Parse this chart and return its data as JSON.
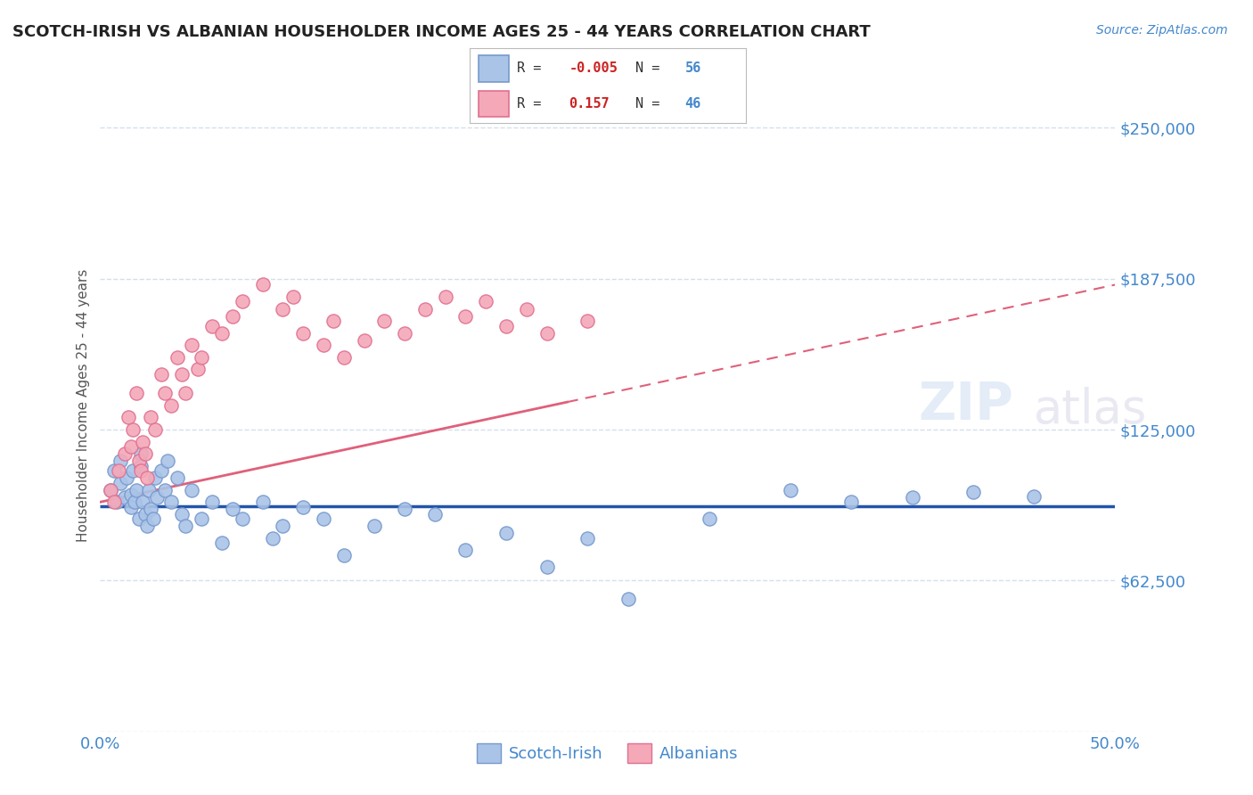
{
  "title": "SCOTCH-IRISH VS ALBANIAN HOUSEHOLDER INCOME AGES 25 - 44 YEARS CORRELATION CHART",
  "source": "Source: ZipAtlas.com",
  "ylabel": "Householder Income Ages 25 - 44 years",
  "yticks": [
    0,
    62500,
    125000,
    187500,
    250000
  ],
  "ytick_labels": [
    "",
    "$62,500",
    "$125,000",
    "$187,500",
    "$250,000"
  ],
  "xlim": [
    0.0,
    0.5
  ],
  "ylim": [
    0,
    270000
  ],
  "legend_labels": [
    "Scotch-Irish",
    "Albanians"
  ],
  "scotch_irish_r": "-0.005",
  "scotch_irish_n": "56",
  "albanian_r": "0.157",
  "albanian_n": "46",
  "scotch_irish_color": "#aac4e8",
  "albanian_color": "#f4a8b8",
  "scotch_irish_edge": "#7799cc",
  "albanian_edge": "#e07090",
  "trend_scotch_color": "#2255aa",
  "trend_albanian_color": "#e0607a",
  "background_color": "#ffffff",
  "grid_color": "#c8d8e8",
  "scotch_irish_x": [
    0.005,
    0.007,
    0.008,
    0.01,
    0.01,
    0.012,
    0.013,
    0.015,
    0.015,
    0.016,
    0.017,
    0.018,
    0.019,
    0.02,
    0.02,
    0.021,
    0.022,
    0.023,
    0.024,
    0.025,
    0.026,
    0.027,
    0.028,
    0.03,
    0.032,
    0.033,
    0.035,
    0.038,
    0.04,
    0.042,
    0.045,
    0.05,
    0.055,
    0.06,
    0.065,
    0.07,
    0.08,
    0.085,
    0.09,
    0.1,
    0.11,
    0.12,
    0.135,
    0.15,
    0.165,
    0.18,
    0.2,
    0.22,
    0.24,
    0.26,
    0.3,
    0.34,
    0.37,
    0.4,
    0.43,
    0.46
  ],
  "scotch_irish_y": [
    100000,
    108000,
    95000,
    112000,
    103000,
    97000,
    105000,
    98000,
    93000,
    108000,
    95000,
    100000,
    88000,
    115000,
    110000,
    95000,
    90000,
    85000,
    100000,
    92000,
    88000,
    105000,
    97000,
    108000,
    100000,
    112000,
    95000,
    105000,
    90000,
    85000,
    100000,
    88000,
    95000,
    78000,
    92000,
    88000,
    95000,
    80000,
    85000,
    93000,
    88000,
    73000,
    85000,
    92000,
    90000,
    75000,
    82000,
    68000,
    80000,
    55000,
    88000,
    100000,
    95000,
    97000,
    99000,
    97500
  ],
  "albanian_x": [
    0.005,
    0.007,
    0.009,
    0.012,
    0.014,
    0.015,
    0.016,
    0.018,
    0.019,
    0.02,
    0.021,
    0.022,
    0.023,
    0.025,
    0.027,
    0.03,
    0.032,
    0.035,
    0.038,
    0.04,
    0.042,
    0.045,
    0.048,
    0.05,
    0.055,
    0.06,
    0.065,
    0.07,
    0.08,
    0.09,
    0.095,
    0.1,
    0.11,
    0.115,
    0.12,
    0.13,
    0.14,
    0.15,
    0.16,
    0.17,
    0.18,
    0.19,
    0.2,
    0.21,
    0.22,
    0.24
  ],
  "albanian_y": [
    100000,
    95000,
    108000,
    115000,
    130000,
    118000,
    125000,
    140000,
    112000,
    108000,
    120000,
    115000,
    105000,
    130000,
    125000,
    148000,
    140000,
    135000,
    155000,
    148000,
    140000,
    160000,
    150000,
    155000,
    168000,
    165000,
    172000,
    178000,
    185000,
    175000,
    180000,
    165000,
    160000,
    170000,
    155000,
    162000,
    170000,
    165000,
    175000,
    180000,
    172000,
    178000,
    168000,
    175000,
    165000,
    170000
  ],
  "watermark": "ZIPatlas"
}
